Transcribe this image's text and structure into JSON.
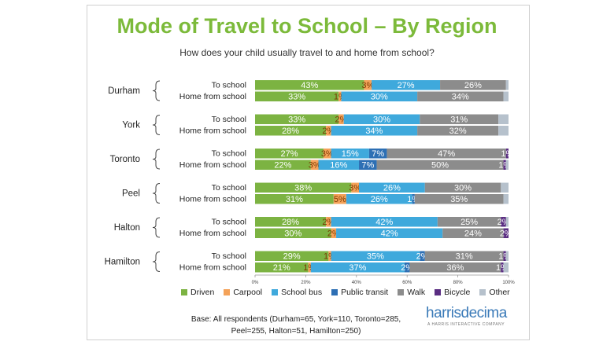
{
  "chart_data": {
    "type": "bar",
    "orientation": "horizontal-stacked-100",
    "title": "Mode of Travel to School – By Region",
    "subtitle": "How does your child usually travel to and home from school?",
    "xlim": [
      0,
      100
    ],
    "x_ticks": [
      "0%",
      "20%",
      "40%",
      "60%",
      "80%",
      "100%"
    ],
    "legend_position": "bottom",
    "series": [
      {
        "name": "Driven",
        "color": "#7cb342"
      },
      {
        "name": "Carpool",
        "color": "#f4a259"
      },
      {
        "name": "School bus",
        "color": "#3fa9dc"
      },
      {
        "name": "Public transit",
        "color": "#2d6fb4"
      },
      {
        "name": "Walk",
        "color": "#8c8c8c"
      },
      {
        "name": "Bicycle",
        "color": "#5a2d82"
      },
      {
        "name": "Other",
        "color": "#b6c1cc"
      }
    ],
    "groups": [
      {
        "region": "Durham",
        "rows": [
          {
            "label": "To school",
            "values": [
              43,
              3,
              27,
              0,
              26,
              0,
              1
            ],
            "labels": [
              "43%",
              "3%",
              "27%",
              "",
              "26%",
              "",
              ""
            ]
          },
          {
            "label": "Home from school",
            "values": [
              33,
              1,
              30,
              0,
              34,
              0,
              2
            ],
            "labels": [
              "33%",
              "1%",
              "30%",
              "",
              "34%",
              "",
              ""
            ]
          }
        ]
      },
      {
        "region": "York",
        "rows": [
          {
            "label": "To school",
            "values": [
              33,
              2,
              30,
              0,
              31,
              0,
              4
            ],
            "labels": [
              "33%",
              "2%",
              "30%",
              "",
              "31%",
              "",
              ""
            ]
          },
          {
            "label": "Home from school",
            "values": [
              28,
              2,
              34,
              0,
              32,
              0,
              4
            ],
            "labels": [
              "28%",
              "2%",
              "34%",
              "",
              "32%",
              "",
              ""
            ]
          }
        ]
      },
      {
        "region": "Toronto",
        "rows": [
          {
            "label": "To school",
            "values": [
              27,
              3,
              15,
              7,
              47,
              1,
              0
            ],
            "labels": [
              "27%",
              "3%",
              "15%",
              "7%",
              "47%",
              "1%",
              ""
            ]
          },
          {
            "label": "Home from school",
            "values": [
              22,
              3,
              16,
              7,
              50,
              1,
              1
            ],
            "labels": [
              "22%",
              "3%",
              "16%",
              "7%",
              "50%",
              "1%",
              ""
            ]
          }
        ]
      },
      {
        "region": "Peel",
        "rows": [
          {
            "label": "To school",
            "values": [
              38,
              3,
              26,
              0,
              30,
              0,
              3
            ],
            "labels": [
              "38%",
              "3%",
              "26%",
              "",
              "30%",
              "",
              ""
            ]
          },
          {
            "label": "Home from school",
            "values": [
              31,
              5,
              26,
              1,
              35,
              0,
              2
            ],
            "labels": [
              "31%",
              "5%",
              "26%",
              "1%",
              "35%",
              "",
              ""
            ]
          }
        ]
      },
      {
        "region": "Halton",
        "rows": [
          {
            "label": "To school",
            "values": [
              28,
              2,
              42,
              0,
              25,
              2,
              1
            ],
            "labels": [
              "28%",
              "2%",
              "42%",
              "",
              "25%",
              "2%",
              ""
            ]
          },
          {
            "label": "Home from school",
            "values": [
              30,
              2,
              42,
              0,
              24,
              2,
              0
            ],
            "labels": [
              "30%",
              "2%",
              "42%",
              "",
              "24%",
              "2%",
              ""
            ]
          }
        ]
      },
      {
        "region": "Hamilton",
        "rows": [
          {
            "label": "To school",
            "values": [
              29,
              1,
              35,
              2,
              31,
              1,
              1
            ],
            "labels": [
              "29%",
              "1%",
              "35%",
              "2%",
              "31%",
              "1%",
              ""
            ]
          },
          {
            "label": "Home from school",
            "values": [
              21,
              1,
              37,
              2,
              36,
              1,
              2
            ],
            "labels": [
              "21%",
              "1%",
              "37%",
              "2%",
              "36%",
              "1%",
              ""
            ]
          }
        ]
      }
    ]
  },
  "footer": {
    "base_line1": "Base: All respondents (Durham=65, York=110, Toronto=285,",
    "base_line2": "Peel=255, Halton=51, Hamilton=250)"
  },
  "logo": {
    "name": "harrisdecima",
    "tagline": "A HARRIS INTERACTIVE COMPANY"
  }
}
